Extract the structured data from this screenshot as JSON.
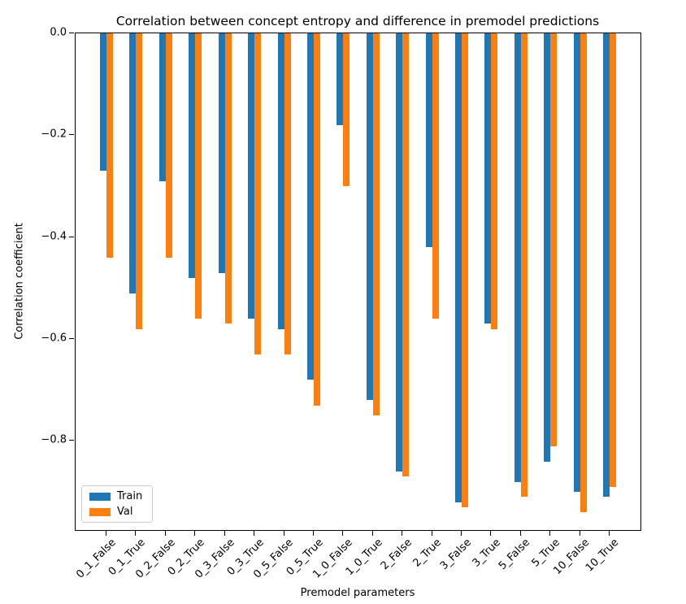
{
  "title": "Correlation between concept entropy and difference in premodel predictions",
  "chart_data": {
    "type": "bar",
    "title": "Correlation between concept entropy and difference in premodel predictions",
    "xlabel": "Premodel parameters",
    "ylabel": "Correlation coefficient",
    "categories": [
      "0_1_False",
      "0_1_True",
      "0_2_False",
      "0_2_True",
      "0_3_False",
      "0_3_True",
      "0_5_False",
      "0_5_True",
      "1_0_False",
      "1_0_True",
      "2_False",
      "2_True",
      "3_False",
      "3_True",
      "5_False",
      "5_True",
      "10_False",
      "10_True"
    ],
    "series": [
      {
        "name": "Train",
        "color": "#1f77b4",
        "values": [
          -0.27,
          -0.51,
          -0.29,
          -0.48,
          -0.47,
          -0.56,
          -0.58,
          -0.68,
          -0.18,
          -0.72,
          -0.86,
          -0.42,
          -0.92,
          -0.57,
          -0.88,
          -0.84,
          -0.9,
          -0.91
        ]
      },
      {
        "name": "Val",
        "color": "#ff7f0e",
        "values": [
          -0.44,
          -0.58,
          -0.44,
          -0.56,
          -0.57,
          -0.63,
          -0.63,
          -0.73,
          -0.3,
          -0.75,
          -0.87,
          -0.56,
          -0.93,
          -0.58,
          -0.91,
          -0.81,
          -0.94,
          -0.89
        ]
      }
    ],
    "ylim": [
      -0.978,
      0
    ],
    "yticks": [
      0.0,
      -0.2,
      -0.4,
      -0.6,
      -0.8
    ],
    "ytick_labels": [
      "0.0",
      "−0.2",
      "−0.4",
      "−0.6",
      "−0.8"
    ],
    "xtick_rotation": 45,
    "grid": false,
    "legend_position": "lower left"
  },
  "legend": {
    "items": [
      {
        "label": "Train",
        "color": "#1f77b4"
      },
      {
        "label": "Val",
        "color": "#ff7f0e"
      }
    ]
  }
}
